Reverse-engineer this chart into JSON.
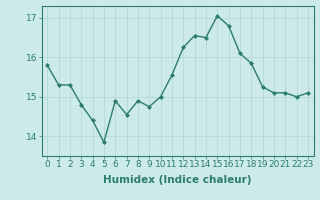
{
  "x": [
    0,
    1,
    2,
    3,
    4,
    5,
    6,
    7,
    8,
    9,
    10,
    11,
    12,
    13,
    14,
    15,
    16,
    17,
    18,
    19,
    20,
    21,
    22,
    23
  ],
  "y": [
    15.8,
    15.3,
    15.3,
    14.8,
    14.4,
    13.85,
    14.9,
    14.55,
    14.9,
    14.75,
    15.0,
    15.55,
    16.25,
    16.55,
    16.5,
    17.05,
    16.8,
    16.1,
    15.85,
    15.25,
    15.1,
    15.1,
    15.0,
    15.1
  ],
  "line_color": "#2d7d6e",
  "marker": "D",
  "marker_size": 2.0,
  "bg_color": "#cceaea",
  "grid_color": "#b8d8d8",
  "xlabel": "Humidex (Indice chaleur)",
  "xlabel_fontsize": 7.5,
  "xlim": [
    -0.5,
    23.5
  ],
  "ylim": [
    13.5,
    17.3
  ],
  "yticks": [
    14,
    15,
    16,
    17
  ],
  "xticks": [
    0,
    1,
    2,
    3,
    4,
    5,
    6,
    7,
    8,
    9,
    10,
    11,
    12,
    13,
    14,
    15,
    16,
    17,
    18,
    19,
    20,
    21,
    22,
    23
  ],
  "tick_fontsize": 6.5,
  "line_width": 1.0
}
